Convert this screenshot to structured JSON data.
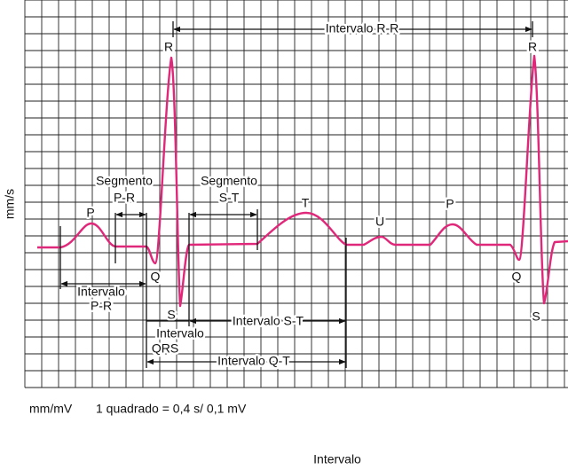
{
  "axis": {
    "y_label": "mm/s"
  },
  "intervals": {
    "r_r": "Intervalo R-R",
    "p_r": [
      "Intervalo",
      "P-R"
    ],
    "qrs": [
      "Intervalo",
      "QRS"
    ],
    "s_t": "Intervalo S-T",
    "q_t": "Intervalo Q-T"
  },
  "segments": {
    "p_r": [
      "Segmento",
      "P-R"
    ],
    "s_t": [
      "Segmento",
      "S-T"
    ]
  },
  "waves": {
    "p1": "P",
    "q1": "Q",
    "r1": "R",
    "s1": "S",
    "t": "T",
    "u": "U",
    "p2": "P",
    "q2": "Q",
    "r2": "R",
    "s2": "S"
  },
  "footer": {
    "units": "mm/mV",
    "scale": "1 quadrado = 0,4 s/ 0,1 mV",
    "caption": "Intervalo"
  }
}
